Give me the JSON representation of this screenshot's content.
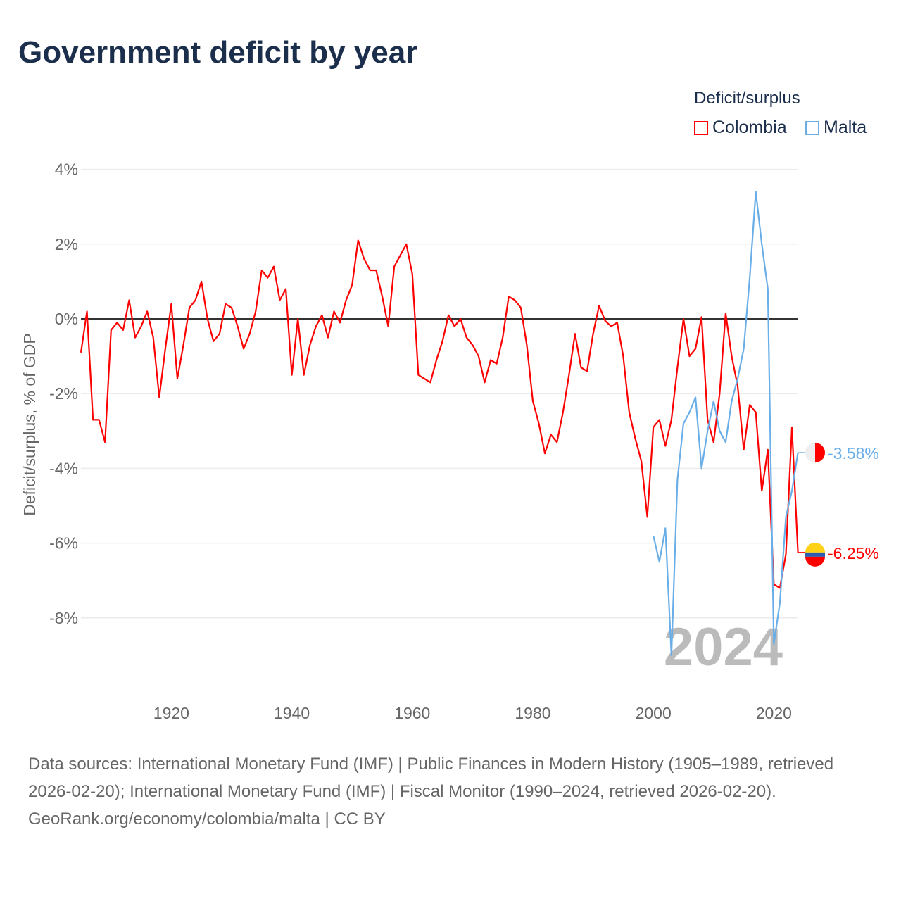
{
  "title": "Government deficit by year",
  "legend": {
    "title": "Deficit/surplus",
    "items": [
      "Colombia",
      "Malta"
    ]
  },
  "footer": {
    "sources": "Data sources: International Monetary Fund (IMF) | Public Finances in Modern History (1905–1989, retrieved 2026-02-20); International Monetary Fund (IMF) | Fiscal Monitor (1990–2024, retrieved 2026-02-20).",
    "credit": "GeoRank.org/economy/colombia/malta | CC BY"
  },
  "chart_data": {
    "type": "line",
    "title": "Government deficit by year",
    "xlabel": "",
    "ylabel": "Deficit/surplus, % of GDP",
    "xlim": [
      1905,
      2024
    ],
    "ylim": [
      -10,
      4.2
    ],
    "yticks": [
      4,
      2,
      0,
      -2,
      -4,
      -6,
      -8
    ],
    "ytick_labels": [
      "4%",
      "2%",
      "0%",
      "-2%",
      "-4%",
      "-6%",
      "-8%"
    ],
    "xticks": [
      1920,
      1940,
      1960,
      1980,
      2000,
      2020
    ],
    "year_watermark": "2024",
    "series": [
      {
        "name": "Colombia",
        "color": "#ff0000",
        "start_year": 1905,
        "end_label": "-6.25%",
        "values": [
          -0.9,
          0.2,
          -2.7,
          -2.7,
          -3.3,
          -0.3,
          -0.1,
          -0.3,
          0.5,
          -0.5,
          -0.2,
          0.2,
          -0.5,
          -2.1,
          -0.8,
          0.4,
          -1.6,
          -0.7,
          0.3,
          0.5,
          1.0,
          0.0,
          -0.6,
          -0.4,
          0.4,
          0.3,
          -0.2,
          -0.8,
          -0.4,
          0.2,
          1.3,
          1.1,
          1.4,
          0.5,
          0.8,
          -1.5,
          0.0,
          -1.5,
          -0.7,
          -0.2,
          0.1,
          -0.5,
          0.2,
          -0.1,
          0.5,
          0.9,
          2.1,
          1.6,
          1.3,
          1.3,
          0.6,
          -0.2,
          1.4,
          1.7,
          2.0,
          1.2,
          -1.5,
          -1.6,
          -1.7,
          -1.1,
          -0.6,
          0.1,
          -0.2,
          0.0,
          -0.5,
          -0.7,
          -1.0,
          -1.7,
          -1.1,
          -1.2,
          -0.5,
          0.6,
          0.5,
          0.3,
          -0.7,
          -2.2,
          -2.8,
          -3.6,
          -3.1,
          -3.3,
          -2.5,
          -1.5,
          -0.4,
          -1.3,
          -1.4,
          -0.4,
          0.35,
          -0.05,
          -0.2,
          -0.1,
          -1.0,
          -2.5,
          -3.2,
          -3.8,
          -5.3,
          -2.9,
          -2.7,
          -3.4,
          -2.7,
          -1.3,
          0.0,
          -1.0,
          -0.8,
          0.05,
          -2.7,
          -3.3,
          -2.0,
          0.15,
          -1.0,
          -1.8,
          -3.5,
          -2.3,
          -2.5,
          -4.6,
          -3.5,
          -7.1,
          -7.2,
          -6.3,
          -2.9,
          -6.25
        ]
      },
      {
        "name": "Malta",
        "color": "#6aaee8",
        "start_year": 2000,
        "end_label": "-3.58%",
        "values": [
          -5.8,
          -6.5,
          -5.6,
          -9.0,
          -4.3,
          -2.8,
          -2.5,
          -2.1,
          -4.0,
          -3.0,
          -2.2,
          -3.0,
          -3.3,
          -2.2,
          -1.6,
          -0.8,
          1.1,
          3.4,
          2.0,
          0.8,
          -8.7,
          -7.6,
          -5.3,
          -4.6,
          -3.58
        ]
      }
    ]
  }
}
